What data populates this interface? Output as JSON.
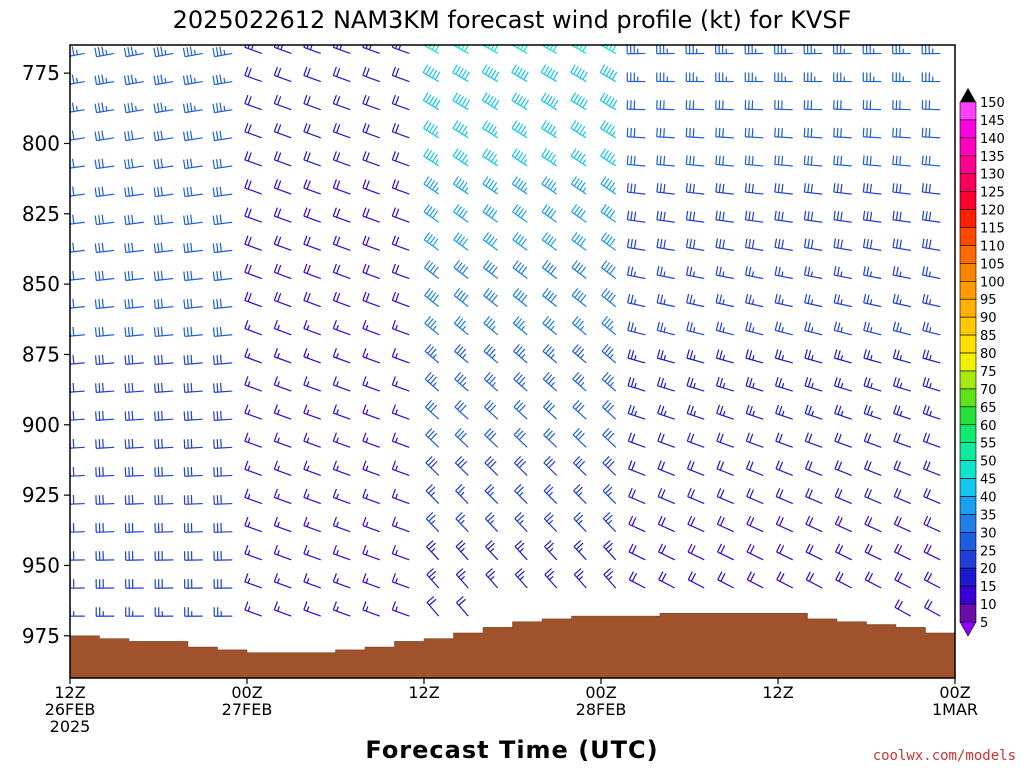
{
  "chart_data": {
    "type": "wind-barb-profile",
    "title": "2025022612 NAM3KM forecast wind profile (kt) for KVSF",
    "xlabel": "Forecast Time (UTC)",
    "credit": "coolwx.com/models",
    "x_ticks": [
      {
        "hour": 0,
        "lines": [
          "12Z",
          "26FEB",
          "2025"
        ]
      },
      {
        "hour": 12,
        "lines": [
          "00Z",
          "27FEB"
        ]
      },
      {
        "hour": 24,
        "lines": [
          "12Z"
        ]
      },
      {
        "hour": 36,
        "lines": [
          "00Z",
          "28FEB"
        ]
      },
      {
        "hour": 48,
        "lines": [
          "12Z"
        ]
      },
      {
        "hour": 60,
        "lines": [
          "00Z",
          "1MAR"
        ]
      }
    ],
    "x_range_hours": [
      0,
      60
    ],
    "y_range_hPa": [
      765,
      990
    ],
    "y_ticks": [
      775,
      800,
      825,
      850,
      875,
      900,
      925,
      950,
      975
    ],
    "speed_scale_kt": [
      5,
      10,
      15,
      20,
      25,
      30,
      35,
      40,
      45,
      50,
      55,
      60,
      65,
      70,
      75,
      80,
      85,
      90,
      95,
      100,
      105,
      110,
      115,
      120,
      125,
      130,
      135,
      140,
      145,
      150
    ],
    "speed_colors": {
      "5": "#8f00ff",
      "10": "#6a0dad",
      "15": "#3b00d6",
      "20": "#1a1acc",
      "25": "#1f3fd8",
      "30": "#1d5fe0",
      "35": "#1e7fe6",
      "40": "#19a1f0",
      "45": "#12c6ee",
      "50": "#11e6cd",
      "55": "#10eaa0",
      "60": "#10e870",
      "65": "#25e03a",
      "70": "#5ee01a",
      "75": "#a8ea10",
      "80": "#f0f000",
      "85": "#ffe000",
      "90": "#ffc800",
      "95": "#ffb000",
      "100": "#ff9a00",
      "105": "#ff8400",
      "110": "#ff6a00",
      "115": "#ff4800",
      "120": "#ff2000",
      "125": "#ff0030",
      "130": "#ff0060",
      "135": "#ff0090",
      "140": "#ff00c0",
      "145": "#ff00e0",
      "150": "#ff40ff"
    },
    "surface_pressure_hPa": [
      [
        0,
        975
      ],
      [
        2,
        976
      ],
      [
        4,
        977
      ],
      [
        6,
        977
      ],
      [
        8,
        979
      ],
      [
        10,
        980
      ],
      [
        12,
        981
      ],
      [
        14,
        981
      ],
      [
        16,
        981
      ],
      [
        18,
        980
      ],
      [
        20,
        979
      ],
      [
        22,
        977
      ],
      [
        24,
        976
      ],
      [
        26,
        974
      ],
      [
        28,
        972
      ],
      [
        30,
        970
      ],
      [
        32,
        969
      ],
      [
        34,
        968
      ],
      [
        36,
        968
      ],
      [
        38,
        968
      ],
      [
        40,
        967
      ],
      [
        42,
        967
      ],
      [
        44,
        967
      ],
      [
        46,
        967
      ],
      [
        48,
        967
      ],
      [
        50,
        969
      ],
      [
        52,
        970
      ],
      [
        54,
        971
      ],
      [
        56,
        972
      ],
      [
        58,
        974
      ],
      [
        60,
        975
      ]
    ],
    "grid": false,
    "legend": "right colorbar"
  }
}
